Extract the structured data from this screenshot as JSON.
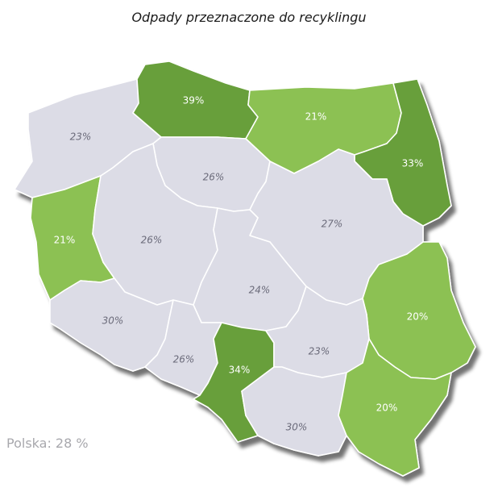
{
  "title": "Odpady przeznaczone do recyklingu",
  "total": "Polska:  28 %",
  "colors": {
    "dark_green": "#679f3a",
    "light_green": "#8cc152",
    "grey": "#dcdce6",
    "shadow": "#8a8a8f"
  },
  "regions": [
    {
      "id": "zachodniopomorskie",
      "value": "23%",
      "tone": "grey"
    },
    {
      "id": "pomorskie",
      "value": "39%",
      "tone": "dark"
    },
    {
      "id": "warminsko-mazurskie",
      "value": "21%",
      "tone": "light"
    },
    {
      "id": "podlaskie",
      "value": "33%",
      "tone": "dark"
    },
    {
      "id": "kujawsko-pomorskie",
      "value": "26%",
      "tone": "grey"
    },
    {
      "id": "lubuskie",
      "value": "21%",
      "tone": "light"
    },
    {
      "id": "wielkopolskie",
      "value": "26%",
      "tone": "grey"
    },
    {
      "id": "mazowieckie",
      "value": "27%",
      "tone": "grey"
    },
    {
      "id": "lodzkie",
      "value": "24%",
      "tone": "grey"
    },
    {
      "id": "dolnoslaskie",
      "value": "30%",
      "tone": "grey"
    },
    {
      "id": "lubelskie",
      "value": "20%",
      "tone": "light"
    },
    {
      "id": "opolskie",
      "value": "26%",
      "tone": "grey"
    },
    {
      "id": "slaskie",
      "value": "34%",
      "tone": "dark"
    },
    {
      "id": "swietokrzyskie",
      "value": "23%",
      "tone": "grey"
    },
    {
      "id": "malopolskie",
      "value": "30%",
      "tone": "grey"
    },
    {
      "id": "podkarpackie",
      "value": "20%",
      "tone": "light"
    }
  ]
}
